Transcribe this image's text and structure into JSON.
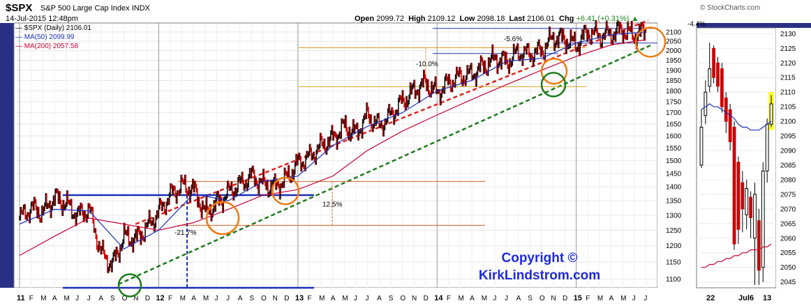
{
  "header": {
    "ticker": "$SPX",
    "description": "S&P 500 Large Cap Index",
    "exchange": "INDX",
    "date": "14-Jul-2015 12:48pm",
    "brand": "© StockCharts.com",
    "ohlc": {
      "open_label": "Open",
      "open": "2099.72",
      "high_label": "High",
      "high": "2109.12",
      "low_label": "Low",
      "low": "2098.18",
      "last_label": "Last",
      "last": "2106.01",
      "chg_label": "Chg",
      "chg": "+6.41 (+0.31%)",
      "arrow": "▲"
    }
  },
  "legend": {
    "price": "$SPX (Daily) 2106.01",
    "ma50": "MA(50) 2099.99",
    "ma200": "MA(200) 2057.58"
  },
  "annotations": {
    "pct_1": "-21.7%",
    "pct_2": "12.5%",
    "pct_3": "-10.0%",
    "pct_4": "-5.6%",
    "pct_5": "-4.4%"
  },
  "copyright": {
    "line1": "Copyright ©",
    "line2": "KirkLindstrom.com"
  },
  "colors": {
    "up": "#111111",
    "down": "#cc0000",
    "ma50": "#1a2fb8",
    "ma200": "#cc0033",
    "channel_top": "#e02020",
    "channel_bottom": "#1d7a1d",
    "circle_orange": "#f07a10",
    "circle_green": "#1a7a1a",
    "highlight": "#ffff33",
    "frame": "#2a2f86"
  },
  "chart_data": [
    {
      "type": "line",
      "title": "$SPX S&P 500 Large Cap Index",
      "scale": "log",
      "ylim": [
        1075,
        2150
      ],
      "y_ticks": [
        1100,
        1150,
        1200,
        1250,
        1300,
        1350,
        1400,
        1450,
        1500,
        1550,
        1600,
        1650,
        1700,
        1750,
        1800,
        1850,
        1900,
        1950,
        2000,
        2050,
        2100
      ],
      "x_ticks": [
        "11",
        "F",
        "M",
        "A",
        "M",
        "J",
        "J",
        "A",
        "S",
        "O",
        "N",
        "D",
        "12",
        "F",
        "M",
        "A",
        "M",
        "J",
        "J",
        "A",
        "S",
        "O",
        "N",
        "D",
        "13",
        "F",
        "M",
        "A",
        "M",
        "J",
        "J",
        "A",
        "S",
        "O",
        "N",
        "D",
        "14",
        "F",
        "M",
        "A",
        "M",
        "J",
        "J",
        "A",
        "S",
        "O",
        "N",
        "D",
        "15",
        "F",
        "M",
        "A",
        "M",
        "J",
        "J"
      ],
      "series": [
        {
          "name": "$SPX (Daily)",
          "x": [
            "2011-01",
            "2011-02",
            "2011-03",
            "2011-04",
            "2011-05",
            "2011-06",
            "2011-07",
            "2011-08",
            "2011-09",
            "2011-10",
            "2011-11",
            "2011-12",
            "2012-01",
            "2012-02",
            "2012-03",
            "2012-04",
            "2012-05",
            "2012-06",
            "2012-07",
            "2012-08",
            "2012-09",
            "2012-10",
            "2012-11",
            "2012-12",
            "2013-01",
            "2013-02",
            "2013-03",
            "2013-04",
            "2013-05",
            "2013-06",
            "2013-07",
            "2013-08",
            "2013-09",
            "2013-10",
            "2013-11",
            "2013-12",
            "2014-01",
            "2014-02",
            "2014-03",
            "2014-04",
            "2014-05",
            "2014-06",
            "2014-07",
            "2014-08",
            "2014-09",
            "2014-10",
            "2014-11",
            "2014-12",
            "2015-01",
            "2015-02",
            "2015-03",
            "2015-04",
            "2015-05",
            "2015-06",
            "2015-07"
          ],
          "values": [
            1290,
            1325,
            1310,
            1360,
            1340,
            1300,
            1320,
            1180,
            1140,
            1230,
            1220,
            1260,
            1310,
            1370,
            1405,
            1390,
            1310,
            1340,
            1380,
            1410,
            1440,
            1410,
            1400,
            1430,
            1490,
            1515,
            1560,
            1590,
            1640,
            1610,
            1690,
            1640,
            1690,
            1750,
            1800,
            1840,
            1790,
            1840,
            1870,
            1880,
            1920,
            1960,
            1940,
            1990,
            1980,
            2000,
            2070,
            2060,
            2030,
            2100,
            2080,
            2090,
            2110,
            2080,
            2106
          ]
        },
        {
          "name": "MA(50)",
          "x": [
            "2011-01",
            "2011-04",
            "2011-07",
            "2011-10",
            "2012-01",
            "2012-04",
            "2012-07",
            "2012-10",
            "2013-01",
            "2013-04",
            "2013-07",
            "2013-10",
            "2014-01",
            "2014-04",
            "2014-07",
            "2014-10",
            "2015-01",
            "2015-04",
            "2015-07"
          ],
          "values": [
            1270,
            1320,
            1315,
            1190,
            1250,
            1375,
            1350,
            1420,
            1440,
            1560,
            1640,
            1700,
            1800,
            1850,
            1945,
            1960,
            2040,
            2085,
            2100
          ]
        },
        {
          "name": "MA(200)",
          "x": [
            "2011-01",
            "2011-04",
            "2011-07",
            "2011-10",
            "2012-01",
            "2012-04",
            "2012-07",
            "2012-10",
            "2013-01",
            "2013-04",
            "2013-07",
            "2013-10",
            "2014-01",
            "2014-04",
            "2014-07",
            "2014-10",
            "2015-01",
            "2015-04",
            "2015-07"
          ],
          "values": [
            1170,
            1230,
            1290,
            1270,
            1250,
            1275,
            1320,
            1370,
            1390,
            1440,
            1540,
            1620,
            1690,
            1760,
            1830,
            1900,
            1970,
            2030,
            2058
          ]
        }
      ]
    },
    {
      "type": "candlestick",
      "title": "",
      "ylim": [
        2043,
        2132
      ],
      "y_ticks": [
        2045,
        2050,
        2055,
        2060,
        2065,
        2070,
        2075,
        2080,
        2085,
        2090,
        2095,
        2100,
        2105,
        2110,
        2115,
        2120,
        2125,
        2130
      ],
      "x_ticks": [
        "22",
        "Jul6",
        "13"
      ],
      "candles": [
        {
          "open": 2085,
          "close": 2098,
          "high": 2104,
          "low": 2084,
          "up": true
        },
        {
          "open": 2102,
          "close": 2110,
          "high": 2114,
          "low": 2099,
          "up": true
        },
        {
          "open": 2112,
          "close": 2118,
          "high": 2127,
          "low": 2110,
          "up": true
        },
        {
          "open": 2125,
          "close": 2115,
          "high": 2126,
          "low": 2113,
          "up": false
        },
        {
          "open": 2120,
          "close": 2112,
          "high": 2122,
          "low": 2110,
          "up": false
        },
        {
          "open": 2118,
          "close": 2105,
          "high": 2120,
          "low": 2103,
          "up": false
        },
        {
          "open": 2108,
          "close": 2100,
          "high": 2110,
          "low": 2096,
          "up": false
        },
        {
          "open": 2104,
          "close": 2093,
          "high": 2106,
          "low": 2090,
          "up": false
        },
        {
          "open": 2098,
          "close": 2058,
          "high": 2100,
          "low": 2056,
          "up": false
        },
        {
          "open": 2086,
          "close": 2063,
          "high": 2088,
          "low": 2058,
          "up": false
        },
        {
          "open": 2079,
          "close": 2070,
          "high": 2083,
          "low": 2062,
          "up": false
        },
        {
          "open": 2068,
          "close": 2077,
          "high": 2080,
          "low": 2063,
          "up": true
        },
        {
          "open": 2074,
          "close": 2067,
          "high": 2076,
          "low": 2060,
          "up": false
        },
        {
          "open": 2060,
          "close": 2075,
          "high": 2079,
          "low": 2044,
          "up": true
        },
        {
          "open": 2066,
          "close": 2049,
          "high": 2070,
          "low": 2044,
          "up": false
        },
        {
          "open": 2050,
          "close": 2083,
          "high": 2086,
          "low": 2045,
          "up": true
        },
        {
          "open": 2083,
          "close": 2099,
          "high": 2101,
          "low": 2079,
          "up": true
        },
        {
          "open": 2099,
          "close": 2106,
          "high": 2109,
          "low": 2098,
          "up": true
        }
      ],
      "ma50": [
        2104,
        2105,
        2106,
        2105,
        2105,
        2104,
        2103,
        2102,
        2101,
        2099,
        2098,
        2098,
        2097,
        2097,
        2097,
        2098,
        2099,
        2100
      ],
      "ma200": [
        2050,
        2050,
        2051,
        2051,
        2052,
        2052,
        2053,
        2053,
        2054,
        2054,
        2055,
        2055,
        2056,
        2056,
        2056,
        2057,
        2057,
        2058
      ]
    }
  ]
}
